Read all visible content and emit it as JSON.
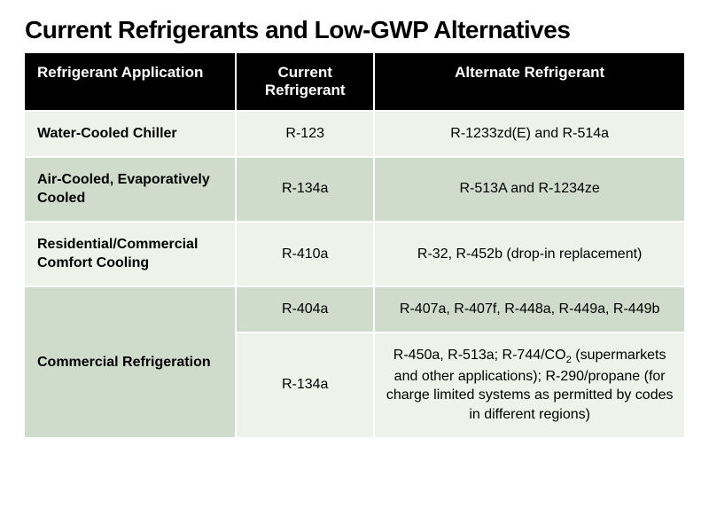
{
  "title": "Current Refrigerants and Low-GWP Alternatives",
  "table": {
    "columns": [
      "Refrigerant Application",
      "Current Refrigerant",
      "Alternate Refrigerant"
    ],
    "col_widths": [
      "32%",
      "21%",
      "47%"
    ],
    "header_bg": "#000000",
    "header_fg": "#ffffff",
    "row_light_bg": "#eef2eb",
    "row_dark_bg": "#cfdccb",
    "border_color": "#ffffff",
    "rows": [
      {
        "shade": "light",
        "application": "Water-Cooled Chiller",
        "current": "R-123",
        "alternate": "R-1233zd(E) and R-514a"
      },
      {
        "shade": "dark",
        "application": "Air-Cooled, Evaporatively Cooled",
        "current": "R-134a",
        "alternate": "R-513A and R-1234ze"
      },
      {
        "shade": "light",
        "application": "Residential/Commercial Comfort Cooling",
        "current": "R-410a",
        "alternate": "R-32, R-452b (drop-in replacement)"
      },
      {
        "shade": "dark",
        "application": "Commercial Refrigeration",
        "rowspan": 2,
        "current": "R-404a",
        "alternate": "R-407a, R-407f, R-448a, R-449a, R-449b"
      },
      {
        "shade": "light",
        "current": "R-134a",
        "alternate_html": "R-450a, R-513a; R-744/CO<sub>2</sub> (supermarkets and other applications); R-290/propane (for charge limited systems as permitted by codes in different regions)"
      }
    ]
  },
  "typography": {
    "title_fontsize": 28,
    "header_fontsize": 17,
    "cell_fontsize": 16,
    "title_color": "#000000",
    "cell_color": "#000000"
  }
}
